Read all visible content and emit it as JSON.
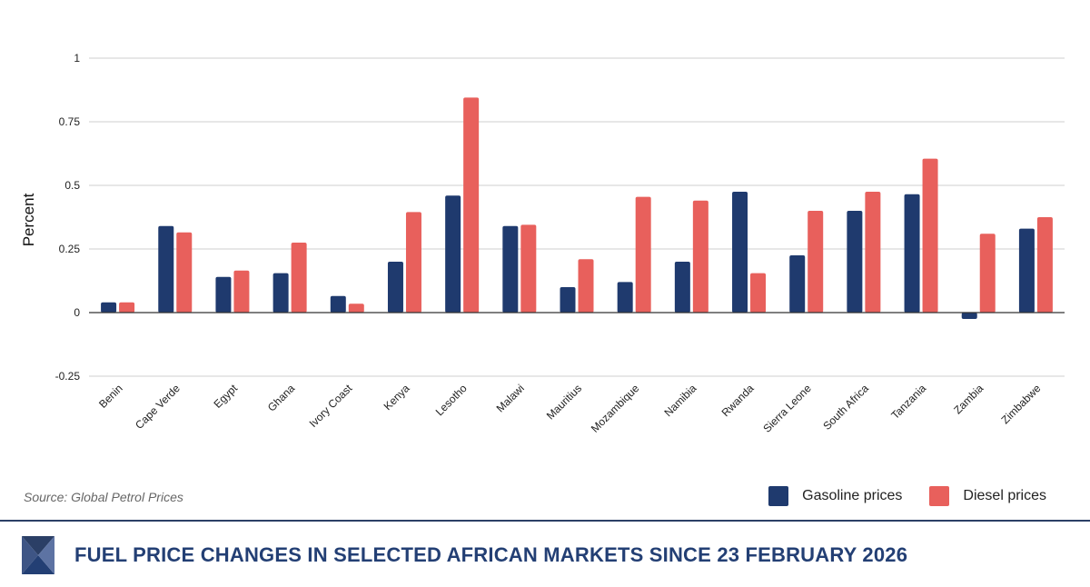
{
  "chart_data": {
    "type": "bar",
    "ylabel": "Percent",
    "ylim": [
      -0.25,
      1
    ],
    "yticks": [
      "1",
      "0.75",
      "0.5",
      "0.25",
      "0",
      "-0.25"
    ],
    "ytick_values": [
      1,
      0.75,
      0.5,
      0.25,
      0,
      -0.25
    ],
    "grid": true,
    "legend_position": "bottom-right",
    "categories": [
      "Benin",
      "Cape Verde",
      "Egypt",
      "Ghana",
      "Ivory Coast",
      "Kenya",
      "Lesotho",
      "Malawi",
      "Mauritius",
      "Mozambique",
      "Namibia",
      "Rwanda",
      "Sierra Leone",
      "South Africa",
      "Tanzania",
      "Zambia",
      "Zimbabwe"
    ],
    "series": [
      {
        "name": "Gasoline prices",
        "color": "#1f3a6e",
        "values": [
          0.04,
          0.34,
          0.14,
          0.155,
          0.065,
          0.2,
          0.46,
          0.34,
          0.1,
          0.12,
          0.2,
          0.475,
          0.225,
          0.4,
          0.465,
          -0.025,
          0.33
        ]
      },
      {
        "name": "Diesel prices",
        "color": "#e8605c",
        "values": [
          0.04,
          0.315,
          0.165,
          0.275,
          0.035,
          0.395,
          0.845,
          0.345,
          0.21,
          0.455,
          0.44,
          0.155,
          0.4,
          0.475,
          0.605,
          0.31,
          0.375
        ]
      }
    ]
  },
  "source": "Source: Global Petrol Prices",
  "legend": {
    "gasoline_label": "Gasoline prices",
    "diesel_label": "Diesel prices",
    "gasoline_color": "#1f3a6e",
    "diesel_color": "#e8605c"
  },
  "footer": {
    "title": "FUEL PRICE CHANGES IN SELECTED AFRICAN MARKETS SINCE 23 FEBRUARY 2026",
    "logo_icon": "triangle-logo-icon",
    "title_color": "#233f74"
  }
}
